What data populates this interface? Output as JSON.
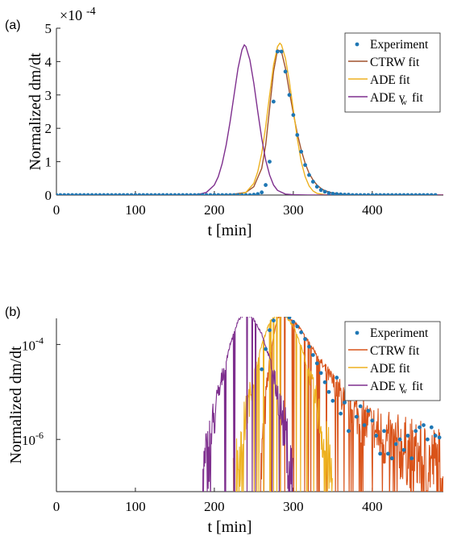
{
  "chart_data": [
    {
      "panel_label": "(a)",
      "type": "line",
      "scale": "linear",
      "xlabel": "t [min]",
      "ylabel": "Normalized dm/dt",
      "y_exponent_label": "×10",
      "y_exponent_power": "-4",
      "xlim": [
        0,
        490
      ],
      "ylim": [
        0,
        5
      ],
      "xticks": [
        "0",
        "100",
        "200",
        "300",
        "400"
      ],
      "xtick_values": [
        0,
        100,
        200,
        300,
        400
      ],
      "yticks": [
        "0",
        "1",
        "2",
        "3",
        "4",
        "5"
      ],
      "ytick_values": [
        0,
        1,
        2,
        3,
        4,
        5
      ],
      "legend": {
        "placement": "top-right",
        "entries": [
          "Experiment",
          "CTRW fit",
          "ADE fit",
          "ADE v",
          "fit"
        ]
      },
      "series": [
        {
          "name": "Experiment",
          "kind": "points",
          "color": "#1f77b4",
          "x": [
            0,
            5,
            10,
            15,
            20,
            25,
            30,
            35,
            40,
            45,
            50,
            55,
            60,
            65,
            70,
            75,
            80,
            85,
            90,
            95,
            100,
            105,
            110,
            115,
            120,
            125,
            130,
            135,
            140,
            145,
            150,
            155,
            160,
            165,
            170,
            175,
            180,
            185,
            190,
            195,
            200,
            205,
            210,
            215,
            220,
            225,
            230,
            235,
            240,
            245,
            250,
            255,
            260,
            265,
            270,
            275,
            280,
            285,
            290,
            295,
            300,
            305,
            310,
            315,
            320,
            325,
            330,
            335,
            340,
            345,
            350,
            355,
            360,
            365,
            370,
            375,
            380,
            385,
            390,
            395,
            400,
            405,
            410,
            415,
            420,
            425,
            430,
            435,
            440,
            445,
            450,
            455,
            460,
            465,
            470,
            475,
            480
          ],
          "y": [
            0,
            0,
            0,
            0,
            0,
            0,
            0,
            0,
            0,
            0,
            0,
            0,
            0,
            0,
            0,
            0,
            0,
            0,
            0,
            0,
            0,
            0,
            0,
            0,
            0,
            0,
            0,
            0,
            0,
            0,
            0,
            0,
            0,
            0,
            0,
            0,
            0,
            0,
            0,
            0,
            0,
            0,
            0,
            0,
            0,
            0,
            0,
            0,
            0,
            0,
            0.01,
            0.03,
            0.08,
            0.3,
            1.0,
            2.8,
            4.3,
            4.3,
            3.7,
            3.0,
            2.4,
            1.8,
            1.3,
            0.9,
            0.6,
            0.4,
            0.25,
            0.15,
            0.1,
            0.06,
            0.04,
            0.03,
            0.02,
            0.01,
            0.01,
            0,
            0,
            0,
            0,
            0,
            0,
            0,
            0,
            0,
            0,
            0,
            0,
            0,
            0,
            0,
            0,
            0,
            0,
            0,
            0,
            0,
            0
          ]
        },
        {
          "name": "CTRW fit",
          "kind": "line",
          "color": "#a0522d",
          "x": [
            200,
            220,
            240,
            250,
            260,
            265,
            270,
            275,
            280,
            285,
            290,
            295,
            300,
            305,
            310,
            315,
            320,
            325,
            330,
            335,
            340,
            350,
            360,
            370,
            380,
            400,
            430,
            470,
            490
          ],
          "y": [
            0,
            0.01,
            0.08,
            0.25,
            0.8,
            1.5,
            2.6,
            3.7,
            4.35,
            4.3,
            3.8,
            3.1,
            2.45,
            1.85,
            1.35,
            0.95,
            0.65,
            0.45,
            0.3,
            0.2,
            0.13,
            0.06,
            0.03,
            0.015,
            0.008,
            0.003,
            0.001,
            0,
            0
          ]
        },
        {
          "name": "ADE fit",
          "kind": "line",
          "color": "#edb120",
          "x": [
            220,
            230,
            240,
            250,
            255,
            260,
            265,
            270,
            275,
            280,
            283,
            285,
            290,
            295,
            300,
            305,
            310,
            315,
            320,
            325,
            330,
            340,
            350,
            490
          ],
          "y": [
            0,
            0.02,
            0.08,
            0.35,
            0.7,
            1.25,
            2.05,
            3.0,
            3.9,
            4.45,
            4.55,
            4.5,
            4.1,
            3.4,
            2.55,
            1.7,
            1.0,
            0.55,
            0.27,
            0.12,
            0.05,
            0.01,
            0,
            0
          ]
        },
        {
          "name": "ADE vw fit",
          "kind": "line",
          "color": "#7e2f8e",
          "x": [
            0,
            170,
            180,
            190,
            200,
            205,
            210,
            215,
            220,
            225,
            230,
            235,
            238,
            240,
            245,
            250,
            255,
            260,
            265,
            270,
            275,
            280,
            290,
            300,
            320,
            490
          ],
          "y": [
            0,
            0,
            0.02,
            0.08,
            0.3,
            0.55,
            0.95,
            1.5,
            2.2,
            3.0,
            3.8,
            4.35,
            4.5,
            4.45,
            4.05,
            3.35,
            2.5,
            1.7,
            1.05,
            0.6,
            0.3,
            0.14,
            0.03,
            0.01,
            0,
            0
          ]
        }
      ]
    },
    {
      "panel_label": "(b)",
      "type": "line",
      "scale": "log-y",
      "xlabel": "t [min]",
      "ylabel": "Normalized dm/dt",
      "xlim": [
        0,
        490
      ],
      "ylim_log10": [
        -7.1,
        -3.45
      ],
      "xticks": [
        "0",
        "100",
        "200",
        "300",
        "400"
      ],
      "xtick_values": [
        0,
        100,
        200,
        300,
        400
      ],
      "yticks": [
        {
          "base": "10",
          "exp": "-4",
          "value": -4
        },
        {
          "base": "10",
          "exp": "-6",
          "value": -6
        }
      ],
      "legend": {
        "placement": "top-right",
        "entries": [
          "Experiment",
          "CTRW fit",
          "ADE fit",
          "ADE v",
          "fit"
        ]
      },
      "series": [
        {
          "name": "Experiment",
          "kind": "points",
          "color": "#1f77b4",
          "x": [
            260,
            265,
            270,
            275,
            280,
            285,
            290,
            295,
            300,
            305,
            310,
            315,
            320,
            325,
            330,
            335,
            340,
            345,
            350,
            355,
            360,
            365,
            370,
            375,
            380,
            385,
            390,
            395,
            400,
            405,
            410,
            415,
            420,
            425,
            430,
            435,
            440,
            445,
            450,
            455,
            460,
            465,
            470,
            475,
            480,
            485
          ],
          "y": [
            3e-05,
            8e-05,
            0.0002,
            0.00032,
            0.00043,
            0.00043,
            0.00041,
            0.00037,
            0.0003,
            0.00024,
            0.00018,
            0.00013,
            9e-05,
            6e-05,
            4e-05,
            2.5e-05,
            1.6e-05,
            1e-05,
            6.5e-06,
            2e-05,
            3.5e-06,
            6e-06,
            1.5e-06,
            8e-06,
            3e-06,
            5e-06,
            2e-06,
            4e-06,
            2.5e-06,
            1.2e-06,
            5e-07,
            1.5e-06,
            5e-07,
            4e-07,
            8e-07,
            1e-06,
            6e-07,
            1.2e-06,
            4e-07,
            1.5e-06,
            1.8e-06,
            2e-06,
            1e-06,
            1.8e-06,
            1.2e-06,
            1.1e-06
          ]
        },
        {
          "name": "CTRW fit",
          "kind": "noisy-line",
          "color": "#d95319",
          "x": [
            258,
            262,
            266,
            270,
            275,
            280,
            285,
            290,
            300,
            310,
            320,
            330,
            340,
            350,
            360,
            370,
            380,
            390,
            400,
            420,
            440,
            460,
            480,
            490
          ],
          "y": [
            1e-07,
            1e-06,
            1e-05,
            4.5e-05,
            0.00015,
            0.00035,
            0.00044,
            0.00042,
            0.00031,
            0.0002,
            0.00011,
            6e-05,
            3e-05,
            1.6e-05,
            9e-06,
            5.5e-06,
            3.5e-06,
            2.3e-06,
            1.6e-06,
            9e-07,
            6e-07,
            4e-07,
            3e-07,
            2.5e-07
          ]
        },
        {
          "name": "ADE fit",
          "kind": "noisy-line",
          "color": "#edb120",
          "x": [
            224,
            230,
            240,
            250,
            260,
            270,
            280,
            283,
            290,
            300,
            310,
            320,
            330,
            340,
            345,
            350
          ],
          "y": [
            1e-07,
            3e-07,
            3e-06,
            2e-05,
            0.0001,
            0.0003,
            0.00044,
            0.000455,
            0.0004,
            0.00025,
            9e-05,
            2.5e-05,
            5e-06,
            7e-07,
            2.5e-07,
            1e-07
          ]
        },
        {
          "name": "ADE vw fit",
          "kind": "noisy-line",
          "color": "#7e2f8e",
          "x": [
            185,
            190,
            200,
            210,
            220,
            230,
            238,
            245,
            250,
            260,
            270,
            280,
            290,
            295,
            300
          ],
          "y": [
            1e-07,
            3e-07,
            3e-06,
            2e-05,
            0.0001,
            0.00032,
            0.00045,
            0.0004,
            0.00034,
            0.00017,
            5e-05,
            9e-06,
            1.2e-06,
            3e-07,
            1e-07
          ]
        }
      ]
    }
  ]
}
